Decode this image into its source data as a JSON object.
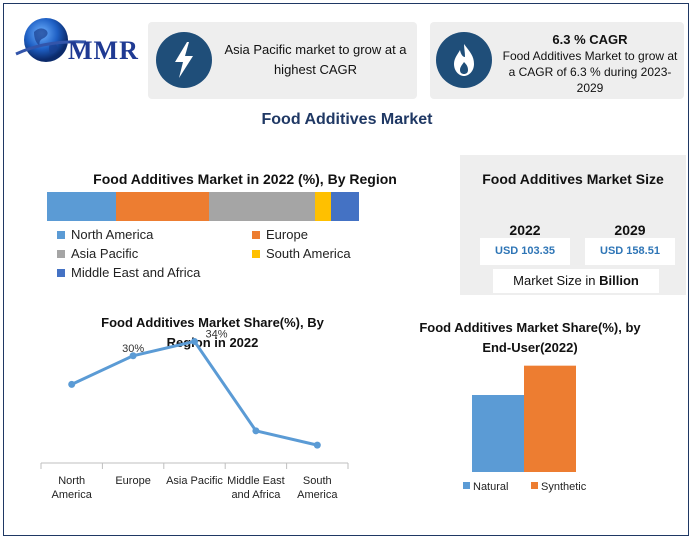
{
  "brand": {
    "logo_text": "MMR"
  },
  "header": {
    "card1_text": "Asia Pacific market to grow at a highest CAGR",
    "card2_title": "6.3 % CAGR",
    "card2_text": "Food Additives Market to grow at a CAGR of 6.3 % during 2023-2029",
    "icon1": "lightning-icon",
    "icon2": "flame-icon"
  },
  "main_title": "Food Additives Market",
  "market_size": {
    "title": "Food Additives Market Size",
    "year1": "2022",
    "value1": "USD 103.35",
    "year2": "2029",
    "value2": "USD 158.51",
    "unit_prefix": "Market Size in ",
    "unit_bold": "Billion"
  },
  "colors": {
    "north_america": "#5b9bd5",
    "europe": "#ed7d31",
    "asia_pacific": "#a5a5a5",
    "south_america": "#ffc000",
    "mea": "#4472c4",
    "line": "#5b9bd5",
    "natural": "#5b9bd5",
    "synthetic": "#ed7d31",
    "navy": "#1f4e79"
  },
  "chart_data": [
    {
      "type": "bar",
      "subtype": "stacked-100",
      "title": "Food Additives Market in 2022 (%), By Region",
      "series": [
        {
          "name": "North America",
          "values": [
            22
          ]
        },
        {
          "name": "Europe",
          "values": [
            30
          ]
        },
        {
          "name": "Asia Pacific",
          "values": [
            34
          ]
        },
        {
          "name": "South America",
          "values": [
            5
          ]
        },
        {
          "name": "Middle East and Africa",
          "values": [
            9
          ]
        }
      ],
      "legend_order": [
        "North America",
        "Europe",
        "Asia Pacific",
        "South America",
        "Middle East and Africa"
      ],
      "legend": "bottom"
    },
    {
      "type": "line",
      "title": "Food Additives Market Share(%), By Region in 2022",
      "categories": [
        "North America",
        "Europe",
        "Asia Pacific",
        "Middle East and Africa",
        "South America"
      ],
      "category_labels": [
        [
          "North",
          "America"
        ],
        [
          "Europe"
        ],
        [
          "Asia Pacific"
        ],
        [
          "Middle East",
          "and Africa"
        ],
        [
          "South",
          "America"
        ]
      ],
      "values": [
        22,
        30,
        34,
        9,
        5
      ],
      "data_labels": [
        "",
        "30%",
        "34%",
        "",
        ""
      ],
      "ylim": [
        0,
        40
      ],
      "grid": false
    },
    {
      "type": "bar",
      "title": "Food Additives Market Share(%), by End-User(2022)",
      "categories": [
        "Natural",
        "Synthetic"
      ],
      "values": [
        42,
        58
      ],
      "ylim": [
        0,
        60
      ],
      "legend": "bottom"
    }
  ]
}
